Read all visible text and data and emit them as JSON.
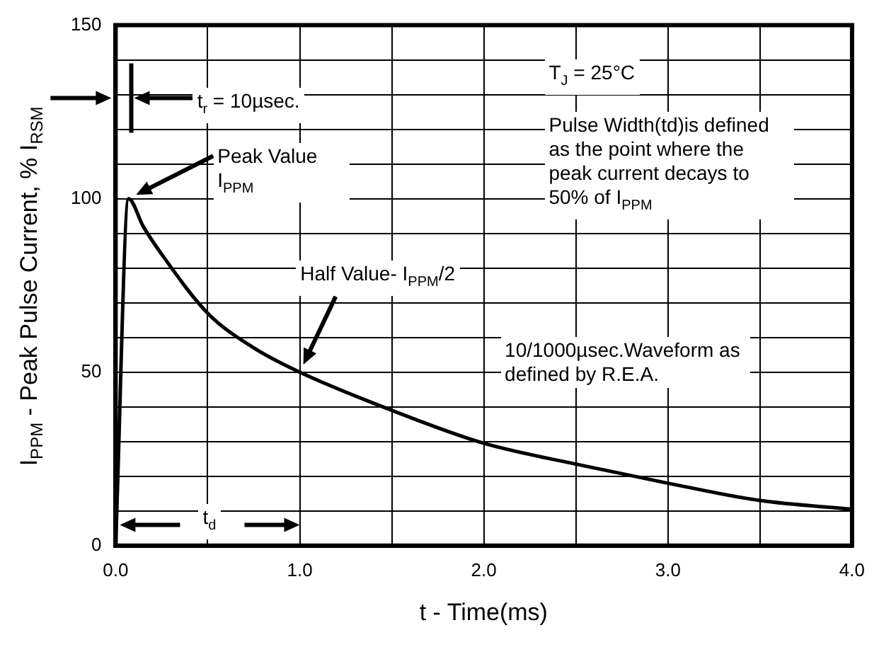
{
  "chart_data": {
    "type": "line",
    "xlabel": "t - Time(ms)",
    "ylabel": "I$_{PPM}$ - Peak Pulse Current, % I$_{RSM}$",
    "x": [
      0,
      0.07,
      0.15,
      0.25,
      0.5,
      0.75,
      1.0,
      1.5,
      2.0,
      2.5,
      3.0,
      3.5,
      4.0
    ],
    "series": [
      {
        "color": "#000000",
        "values": [
          0,
          100,
          92,
          84,
          67,
          57,
          50,
          39,
          29.5,
          23.5,
          18,
          13,
          10.5
        ]
      }
    ],
    "xlim": [
      0,
      4
    ],
    "xticks": [
      {
        "value": 0,
        "label": "0.0"
      },
      {
        "value": 0.5,
        "label": null
      },
      {
        "value": 1,
        "label": "1.0"
      },
      {
        "value": 1.5,
        "label": null
      },
      {
        "value": 2,
        "label": "2.0"
      },
      {
        "value": 2.5,
        "label": null
      },
      {
        "value": 3,
        "label": "3.0"
      },
      {
        "value": 3.5,
        "label": null
      },
      {
        "value": 4,
        "label": "4.0"
      }
    ],
    "ylim": [
      0,
      150
    ],
    "yticks": [
      0,
      {
        "value": 10,
        "label": null
      },
      {
        "value": 20,
        "label": null
      },
      {
        "value": 30,
        "label": null
      },
      {
        "value": 40,
        "label": null
      },
      50,
      {
        "value": 60,
        "label": null
      },
      {
        "value": 70,
        "label": null
      },
      {
        "value": 80,
        "label": null
      },
      {
        "value": 90,
        "label": null
      },
      100,
      {
        "value": 110,
        "label": null
      },
      {
        "value": 120,
        "label": null
      },
      {
        "value": 130,
        "label": null
      },
      {
        "value": 140,
        "label": null
      },
      150
    ],
    "grid": true,
    "marker": "none",
    "line_style": "solid",
    "annotations": [
      "t$_{r}$ = 10µsec.",
      "Peak Value I$_{PPM}$",
      "Half Value- I$_{PPM}$/2",
      "T$_{J}$ = 25°C",
      "Pulse Width(td)is defined as the point where the peak current decays to 50% of I$_{PPM}$",
      "10/1000µsec.Waveform as defined by R.E.A.",
      "t$_{d}$"
    ]
  }
}
